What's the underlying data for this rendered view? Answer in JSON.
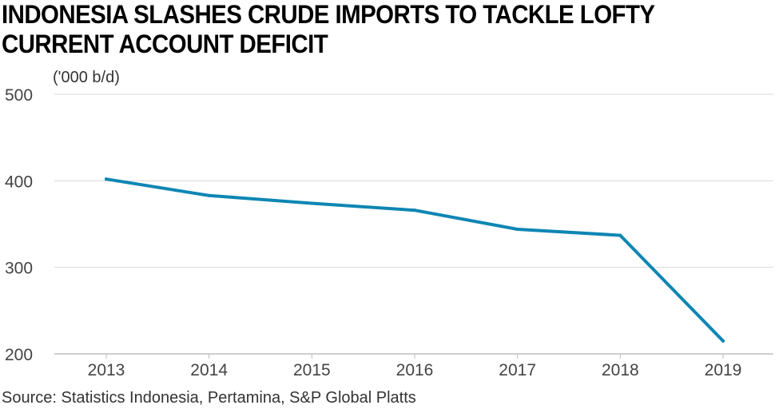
{
  "title": "INDONESIA SLASHES CRUDE IMPORTS TO TACKLE LOFTY CURRENT ACCOUNT DEFICIT",
  "source": "Source: Statistics Indonesia, Pertamina, S&P Global Platts",
  "colors": {
    "line": "#0e86b3",
    "grid": "#d9d9d9",
    "axis": "#bdbdbd"
  },
  "chart_data": {
    "type": "line",
    "title": "INDONESIA SLASHES CRUDE IMPORTS TO TACKLE LOFTY CURRENT ACCOUNT DEFICIT",
    "ylabel": "('000 b/d)",
    "xlabel": "",
    "x": [
      "2013",
      "2014",
      "2015",
      "2016",
      "2017",
      "2018",
      "2019"
    ],
    "series": [
      {
        "values": [
          402,
          383,
          374,
          366,
          344,
          337,
          215
        ]
      }
    ],
    "ylim": [
      200,
      500
    ],
    "yticks": [
      "200",
      "300",
      "400",
      "500"
    ],
    "grid": true,
    "legend": "none"
  }
}
